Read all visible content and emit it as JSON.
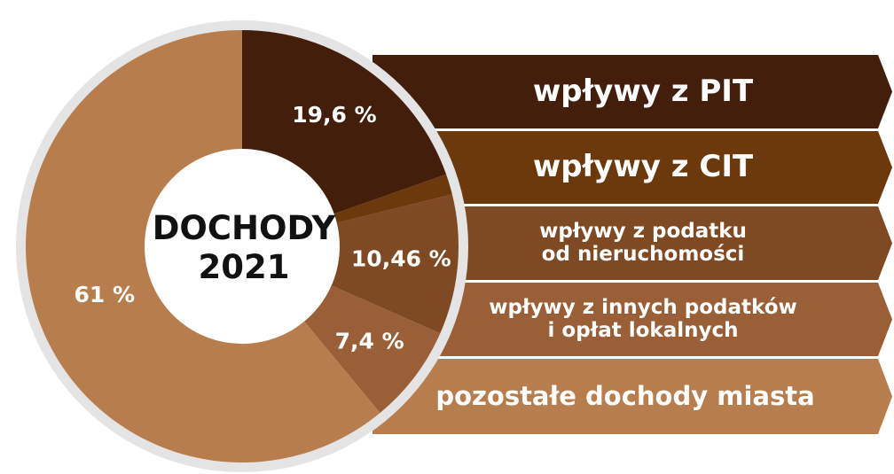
{
  "chart_data": {
    "type": "pie",
    "title": "DOCHODY\n2021",
    "categories": [
      "wpływy z PIT",
      "wpływy z CIT",
      "wpływy z podatku\nod nieruchomości",
      "wpływy z innych podatków\ni opłat lokalnych",
      "pozostałe dochody miasta"
    ],
    "values": [
      19.6,
      1.54,
      10.46,
      7.4,
      61
    ],
    "value_labels": [
      "19,6 %",
      null,
      "10,46 %",
      "7,4 %",
      "61 %"
    ],
    "colors": [
      "#431e0b",
      "#6b390c",
      "#7f4a23",
      "#9b5f37",
      "#b87d4c"
    ]
  }
}
